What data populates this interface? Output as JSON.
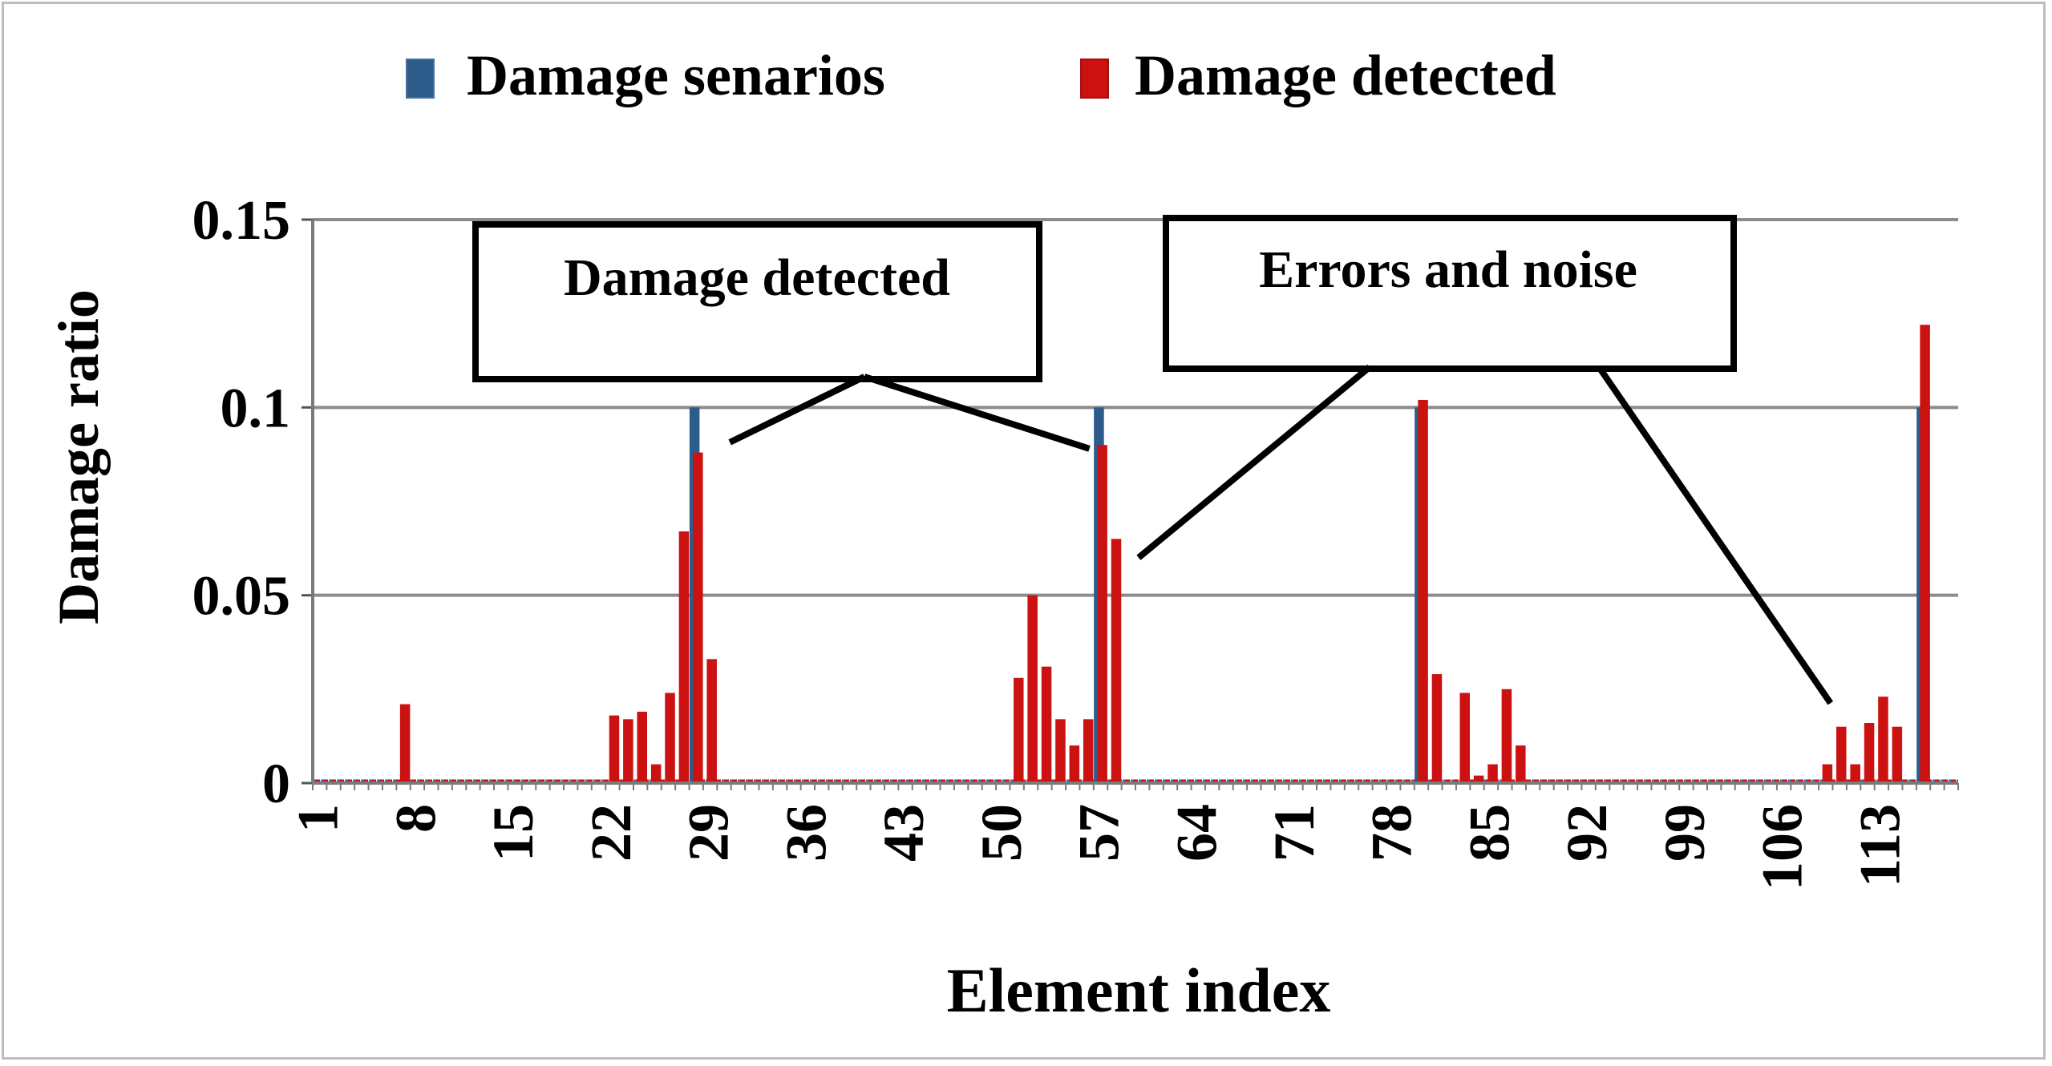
{
  "chart_data": {
    "type": "bar",
    "title": "",
    "xlabel": "Element index",
    "ylabel": "Damage ratio",
    "ylim": [
      0,
      0.15
    ],
    "yticks": [
      "0",
      "0.05",
      "0.1",
      "0.15"
    ],
    "x_tick_labels": [
      "1",
      "8",
      "15",
      "22",
      "29",
      "36",
      "43",
      "50",
      "57",
      "64",
      "71",
      "78",
      "85",
      "92",
      "99",
      "106",
      "113"
    ],
    "n_elements": 118,
    "grid": "horizontal",
    "legend_position": "top",
    "series": [
      {
        "name": "Damage senarios",
        "color": "#2e5c8a",
        "points": [
          {
            "x": 28,
            "y": 0.1
          },
          {
            "x": 57,
            "y": 0.1
          },
          {
            "x": 80,
            "y": 0.1
          },
          {
            "x": 116,
            "y": 0.1
          }
        ]
      },
      {
        "name": "Damage detected",
        "color": "#cc1111",
        "points": [
          {
            "x": 7,
            "y": 0.021
          },
          {
            "x": 22,
            "y": 0.018
          },
          {
            "x": 23,
            "y": 0.017
          },
          {
            "x": 24,
            "y": 0.019
          },
          {
            "x": 25,
            "y": 0.005
          },
          {
            "x": 26,
            "y": 0.024
          },
          {
            "x": 27,
            "y": 0.067
          },
          {
            "x": 28,
            "y": 0.088
          },
          {
            "x": 29,
            "y": 0.033
          },
          {
            "x": 51,
            "y": 0.028
          },
          {
            "x": 52,
            "y": 0.05
          },
          {
            "x": 53,
            "y": 0.031
          },
          {
            "x": 54,
            "y": 0.017
          },
          {
            "x": 55,
            "y": 0.01
          },
          {
            "x": 56,
            "y": 0.017
          },
          {
            "x": 57,
            "y": 0.09
          },
          {
            "x": 58,
            "y": 0.065
          },
          {
            "x": 80,
            "y": 0.102
          },
          {
            "x": 81,
            "y": 0.029
          },
          {
            "x": 83,
            "y": 0.024
          },
          {
            "x": 84,
            "y": 0.002
          },
          {
            "x": 85,
            "y": 0.005
          },
          {
            "x": 86,
            "y": 0.025
          },
          {
            "x": 87,
            "y": 0.01
          },
          {
            "x": 109,
            "y": 0.005
          },
          {
            "x": 110,
            "y": 0.015
          },
          {
            "x": 111,
            "y": 0.005
          },
          {
            "x": 112,
            "y": 0.016
          },
          {
            "x": 113,
            "y": 0.023
          },
          {
            "x": 114,
            "y": 0.015
          },
          {
            "x": 116,
            "y": 0.122
          }
        ]
      }
    ],
    "annotations": [
      {
        "text": "Damage detected",
        "target_points": [
          {
            "x": 28,
            "y": 0.092
          },
          {
            "x": 57,
            "y": 0.092
          }
        ]
      },
      {
        "text": "Errors and noise",
        "target_points": [
          {
            "x": 58,
            "y": 0.063
          },
          {
            "x": 109,
            "y": 0.02
          }
        ]
      }
    ]
  }
}
